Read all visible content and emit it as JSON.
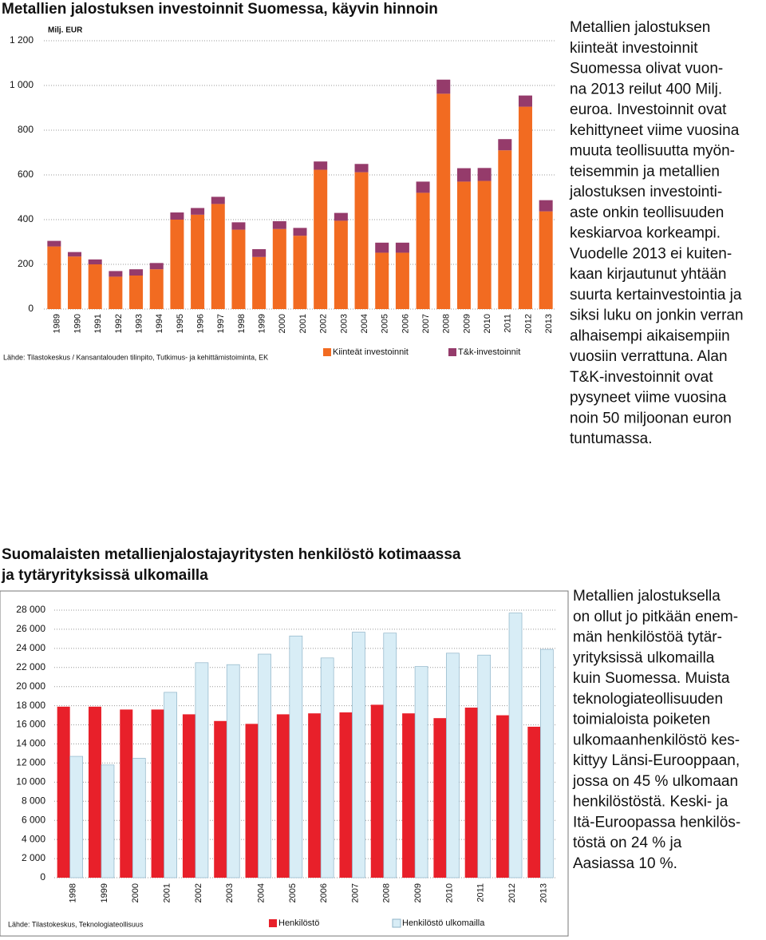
{
  "chart_data": [
    {
      "type": "stacked-bar",
      "title": "Metallien jalostuksen investoinnit Suomessa, käyvin hinnoin",
      "unit": "Milj. EUR",
      "source": "Lähde: Tilastokeskus / Kansantalouden tilinpito, Tutkimus- ja kehittämistoiminta, EK",
      "categories": [
        "1989",
        "1990",
        "1991",
        "1992",
        "1993",
        "1994",
        "1995",
        "1996",
        "1997",
        "1998",
        "1999",
        "2000",
        "2001",
        "2002",
        "2003",
        "2004",
        "2005",
        "2006",
        "2007",
        "2008",
        "2009",
        "2010",
        "2011",
        "2012",
        "2013"
      ],
      "series": [
        {
          "name": "Kiinteät investoinnit",
          "color": "#f26b21",
          "values": [
            280,
            235,
            200,
            145,
            150,
            178,
            400,
            422,
            470,
            355,
            233,
            358,
            328,
            623,
            395,
            612,
            252,
            252,
            520,
            963,
            570,
            573,
            710,
            905,
            437
          ]
        },
        {
          "name": "T&k-investoinnit",
          "color": "#953b6b",
          "values": [
            25,
            20,
            22,
            25,
            28,
            28,
            32,
            30,
            32,
            33,
            35,
            35,
            35,
            37,
            35,
            37,
            45,
            45,
            50,
            63,
            60,
            58,
            50,
            50,
            50
          ]
        }
      ],
      "ylim": [
        0,
        1200
      ],
      "yticks": [
        0,
        200,
        400,
        600,
        800,
        {
          "value": 1000,
          "label": "1 000"
        },
        {
          "value": 1200,
          "label": "1 200"
        }
      ],
      "grid": true
    },
    {
      "type": "bar",
      "title": "Suomalaisten metallienjalostajayritysten henkilöstö kotimaassa ja tytäryrityksissä ulkomailla",
      "source": "Lähde: Tilastokeskus, Teknologiateollisuus",
      "categories": [
        "1998",
        "1999",
        "2000",
        "2001",
        "2002",
        "2003",
        "2004",
        "2005",
        "2006",
        "2007",
        "2008",
        "2009",
        "2010",
        "2011",
        "2012",
        "2013"
      ],
      "series": [
        {
          "name": "Henkilöstö",
          "color": "#e8202a",
          "values": [
            17900,
            17900,
            17600,
            17600,
            17100,
            16400,
            16100,
            17100,
            17200,
            17300,
            18100,
            17200,
            16700,
            17800,
            17000,
            15800
          ]
        },
        {
          "name": "Henkilöstö ulkomailla",
          "color": "#d8edf6",
          "values": [
            12700,
            11800,
            12500,
            19400,
            22500,
            22300,
            23400,
            25300,
            23000,
            25700,
            25600,
            22100,
            23500,
            23300,
            27700,
            23900
          ]
        }
      ],
      "ylim": [
        0,
        28000
      ],
      "yticks": [
        0,
        {
          "value": 2000,
          "label": "2 000"
        },
        {
          "value": 4000,
          "label": "4 000"
        },
        {
          "value": 6000,
          "label": "6 000"
        },
        {
          "value": 8000,
          "label": "8 000"
        },
        {
          "value": 10000,
          "label": "10 000"
        },
        {
          "value": 12000,
          "label": "12 000"
        },
        {
          "value": 14000,
          "label": "14 000"
        },
        {
          "value": 16000,
          "label": "16 000"
        },
        {
          "value": 18000,
          "label": "18 000"
        },
        {
          "value": 20000,
          "label": "20 000"
        },
        {
          "value": 22000,
          "label": "22 000"
        },
        {
          "value": 24000,
          "label": "24 000"
        },
        {
          "value": 26000,
          "label": "26 000"
        },
        {
          "value": 28000,
          "label": "28 000"
        }
      ],
      "grid": true
    }
  ],
  "texts": [
    [
      "Metallien jalostuksen",
      "kiinteät investoinnit",
      "Suomessa olivat vuon-",
      "na 2013 reilut 400 Milj.",
      "euroa. Investoinnit ovat",
      "kehittyneet viime vuosina",
      "muuta teollisuutta myön-",
      "teisemmin ja metallien",
      "jalostuksen investointi-",
      "aste onkin teollisuuden",
      "keskiarvoa korkeampi.",
      "Vuodelle 2013 ei kuiten-",
      "kaan kirjautunut yhtään",
      "suurta kertainvestointia ja",
      "siksi luku on jonkin verran",
      "alhaisempi aikaisempiin",
      "vuosiin verrattuna. Alan",
      "T&K-investoinnit ovat",
      "pysyneet viime vuosina",
      "noin 50 miljoonan euron",
      "tuntumassa."
    ],
    [
      "Metallien jalostuksella",
      "on ollut jo pitkään enem-",
      "män henkilöstöä tytär-",
      "yrityksissä ulkomailla",
      "kuin Suomessa. Muista",
      "teknologiateollisuuden",
      "toimialoista poiketen",
      "ulkomaanhenkilöstö kes-",
      "kittyy Länsi-Eurooppaan,",
      "jossa on 45 % ulkomaan",
      "henkilöstöstä. Keski- ja",
      "Itä-Euroopassa henkilös-",
      "töstä on 24 % ja",
      "Aasiassa 10 %."
    ]
  ]
}
